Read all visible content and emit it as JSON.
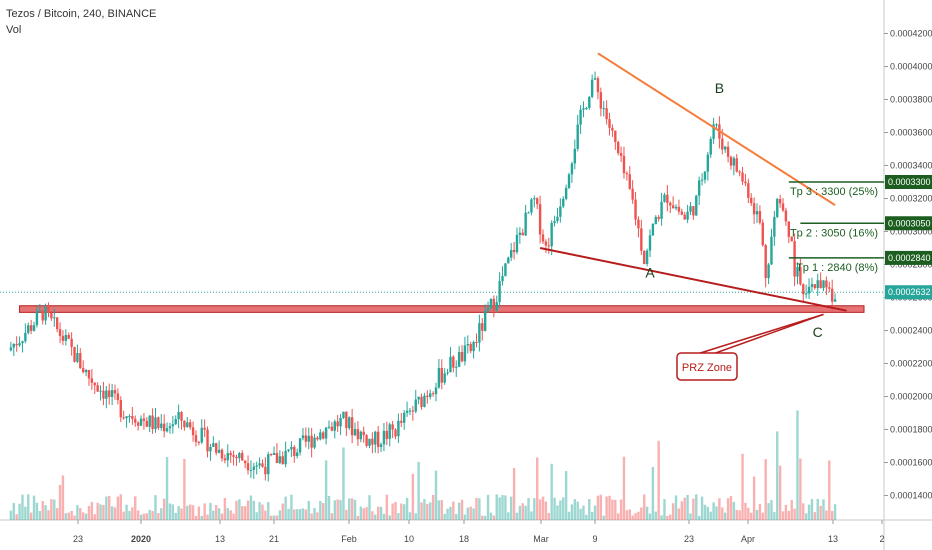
{
  "header": {
    "symbol": "Tezos / Bitcoin, 240, BINANCE",
    "volume_label": "Vol"
  },
  "colors": {
    "up": "#26a69a",
    "down": "#ef5350",
    "trend_orange": "#f57c3b",
    "trend_red": "#b71c1c",
    "target_green": "#1b5e20",
    "last_price_bg": "#26a69a",
    "prz_fill": "#e57373"
  },
  "chart_data": {
    "type": "candlestick",
    "y_scale": "linear",
    "ylim": [
      0.00012,
      0.00043
    ],
    "y_ticks": [
      "0.0004200",
      "0.0004000",
      "0.0003800",
      "0.0003600",
      "0.0003400",
      "0.0003200",
      "0.0003000",
      "0.0002800",
      "0.0002600",
      "0.0002400",
      "0.0002200",
      "0.0002000",
      "0.0001800",
      "0.0001600",
      "0.0001400"
    ],
    "y_tick_values": [
      0.00042,
      0.0004,
      0.00038,
      0.00036,
      0.00034,
      0.00032,
      0.0003,
      0.00028,
      0.00026,
      0.00024,
      0.00022,
      0.0002,
      0.00018,
      0.00016,
      0.00014
    ],
    "x_ticks": [
      "23",
      "2020",
      "13",
      "21",
      "Feb",
      "10",
      "18",
      "Mar",
      "9",
      "23",
      "Apr",
      "13",
      "2"
    ],
    "price_path": [
      {
        "t": 0,
        "p": 0.000228
      },
      {
        "t": 4,
        "p": 0.000243
      },
      {
        "t": 6,
        "p": 0.000251
      },
      {
        "t": 9,
        "p": 0.000238
      },
      {
        "t": 14,
        "p": 0.000212
      },
      {
        "t": 20,
        "p": 0.000191
      },
      {
        "t": 26,
        "p": 0.000182
      },
      {
        "t": 30,
        "p": 0.000186
      },
      {
        "t": 36,
        "p": 0.000168
      },
      {
        "t": 44,
        "p": 0.000158
      },
      {
        "t": 50,
        "p": 0.000168
      },
      {
        "t": 55,
        "p": 0.000181
      },
      {
        "t": 58,
        "p": 0.000185
      },
      {
        "t": 63,
        "p": 0.000172
      },
      {
        "t": 67,
        "p": 0.00018
      },
      {
        "t": 70,
        "p": 0.000192
      },
      {
        "t": 76,
        "p": 0.000218
      },
      {
        "t": 80,
        "p": 0.000228
      },
      {
        "t": 84,
        "p": 0.000258
      },
      {
        "t": 88,
        "p": 0.000295
      },
      {
        "t": 91,
        "p": 0.000318
      },
      {
        "t": 93,
        "p": 0.00029
      },
      {
        "t": 96,
        "p": 0.000325
      },
      {
        "t": 99,
        "p": 0.000368
      },
      {
        "t": 101,
        "p": 0.000392
      },
      {
        "t": 103,
        "p": 0.000375
      },
      {
        "t": 106,
        "p": 0.00034
      },
      {
        "t": 108,
        "p": 0.000318
      },
      {
        "t": 110,
        "p": 0.000284
      },
      {
        "t": 112,
        "p": 0.000308
      },
      {
        "t": 114,
        "p": 0.000322
      },
      {
        "t": 117,
        "p": 0.000308
      },
      {
        "t": 119,
        "p": 0.000318
      },
      {
        "t": 122,
        "p": 0.000365
      },
      {
        "t": 124,
        "p": 0.00035
      },
      {
        "t": 126,
        "p": 0.000338
      },
      {
        "t": 128,
        "p": 0.000325
      },
      {
        "t": 130,
        "p": 0.000305
      },
      {
        "t": 131,
        "p": 0.000275
      },
      {
        "t": 133,
        "p": 0.000318
      },
      {
        "t": 135,
        "p": 0.0003
      },
      {
        "t": 136,
        "p": 0.000278
      },
      {
        "t": 138,
        "p": 0.000258
      },
      {
        "t": 140,
        "p": 0.000272
      },
      {
        "t": 142,
        "p": 0.000262
      },
      {
        "t": 143,
        "p": 0.000263
      }
    ],
    "last_price": {
      "value": 0.0002632,
      "label": "0.0002632"
    },
    "annotations": {
      "wave_labels": [
        {
          "text": "A",
          "t": 111,
          "p": 0.000272
        },
        {
          "text": "B",
          "t": 123,
          "p": 0.000384
        },
        {
          "text": "C",
          "t": 140,
          "p": 0.000236
        }
      ],
      "targets": [
        {
          "label": "Tp 3 : 3300 (25%)",
          "value": 0.00033,
          "price_label": "0.0003300",
          "t_start": 135
        },
        {
          "label": "Tp 2 : 3050 (16%)",
          "value": 0.000305,
          "price_label": "0.0003050",
          "t_start": 137
        },
        {
          "label": "Tp 1 : 2840 (8%)",
          "value": 0.000284,
          "price_label": "0.0002840",
          "t_start": 135
        }
      ],
      "prz_zone": {
        "label": "PRZ Zone",
        "p_low": 0.000251,
        "p_high": 0.000255,
        "t_start": 2,
        "t_end": 148
      },
      "dotted_price_line": 0.0002632,
      "trend_lines": [
        {
          "name": "upper",
          "t1": 102,
          "p1": 0.000408,
          "t2": 143,
          "p2": 0.000316
        },
        {
          "name": "lower",
          "t1": 92,
          "p1": 0.00029,
          "t2": 145,
          "p2": 0.000252
        }
      ]
    }
  }
}
